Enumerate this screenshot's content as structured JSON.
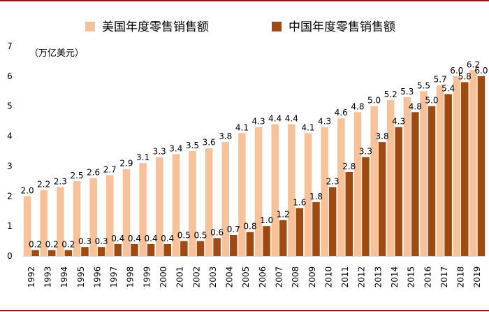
{
  "chart_data": {
    "type": "bar",
    "title": "",
    "unit_label": "（万亿美元）",
    "xlabel": "",
    "ylabel": "",
    "ylim": [
      0,
      7
    ],
    "yticks": [
      0,
      1,
      2,
      3,
      4,
      5,
      6,
      7
    ],
    "categories": [
      "1992",
      "1993",
      "1994",
      "1995",
      "1996",
      "1997",
      "1998",
      "1999",
      "2000",
      "2001",
      "2002",
      "2003",
      "2004",
      "2005",
      "2006",
      "2007",
      "2008",
      "2009",
      "2010",
      "2011",
      "2012",
      "2013",
      "2014",
      "2015",
      "2016",
      "2017",
      "2018",
      "2019"
    ],
    "series": [
      {
        "name": "美国年度零售销售额",
        "color": "#f7c29a",
        "values": [
          2.0,
          2.2,
          2.3,
          2.5,
          2.6,
          2.7,
          2.9,
          3.1,
          3.3,
          3.4,
          3.5,
          3.6,
          3.8,
          4.1,
          4.3,
          4.4,
          4.4,
          4.1,
          4.3,
          4.6,
          4.8,
          5.0,
          5.2,
          5.3,
          5.5,
          5.7,
          6.0,
          6.2
        ]
      },
      {
        "name": "中国年度零售销售额",
        "color": "#9e4a10",
        "values": [
          0.2,
          0.2,
          0.2,
          0.3,
          0.3,
          0.4,
          0.4,
          0.4,
          0.4,
          0.5,
          0.5,
          0.6,
          0.7,
          0.8,
          1.0,
          1.2,
          1.6,
          1.8,
          2.3,
          2.8,
          3.3,
          3.8,
          4.3,
          4.8,
          5.0,
          5.4,
          5.8,
          6.0
        ]
      }
    ],
    "legend_position": "top-center",
    "grid": false
  }
}
